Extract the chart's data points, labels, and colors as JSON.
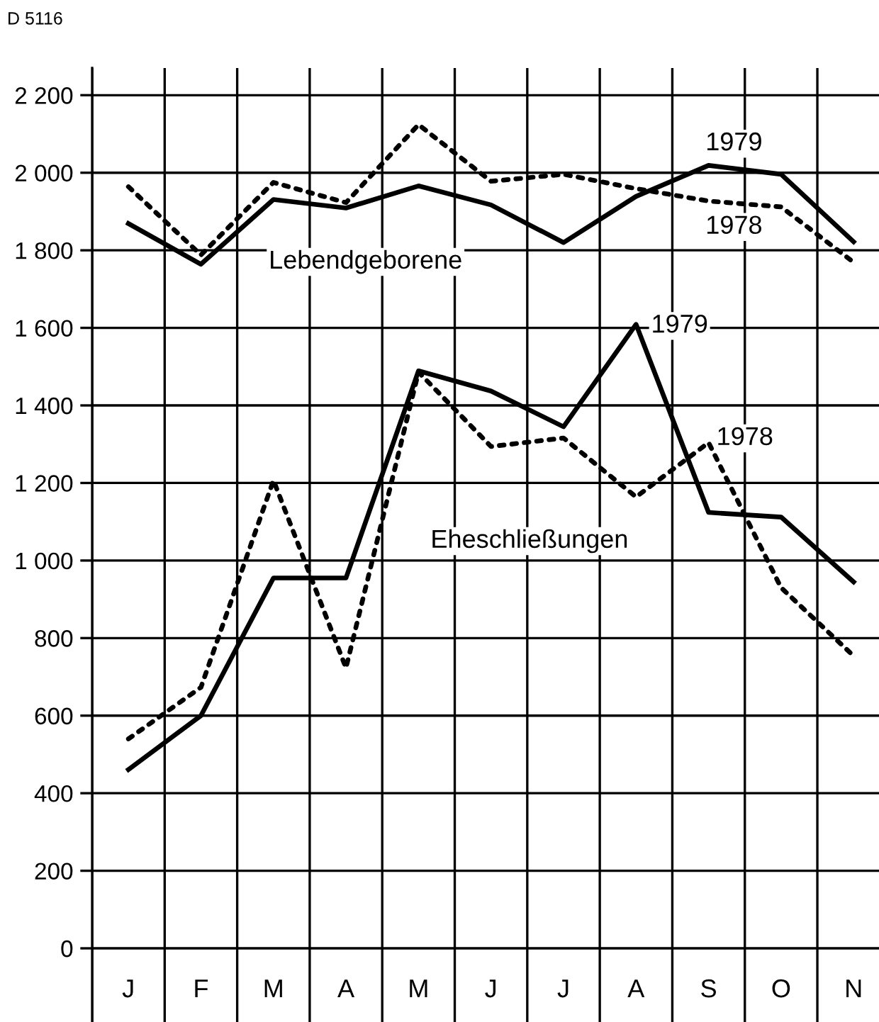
{
  "chart_data": {
    "type": "line",
    "categories": [
      "J",
      "F",
      "M",
      "A",
      "M",
      "J",
      "J",
      "A",
      "S",
      "O",
      "N"
    ],
    "series": [
      {
        "name": "1979",
        "color": "#000000",
        "line_style": "solid",
        "values": [
          1869,
          1764,
          1931,
          1909,
          1966,
          1917,
          1820,
          1939,
          2019,
          1996,
          1822
        ]
      },
      {
        "name": "1978",
        "color": "#000000",
        "line_style": "dotted",
        "values": [
          1964,
          1788,
          1975,
          1923,
          2124,
          1978,
          1996,
          1959,
          1927,
          1912,
          1769
        ]
      },
      {
        "name": "1979",
        "color": "#000000",
        "line_style": "solid",
        "values": [
          461,
          600,
          955,
          955,
          1489,
          1437,
          1345,
          1609,
          1124,
          1112,
          945
        ]
      },
      {
        "name": "1978",
        "color": "#000000",
        "line_style": "dotted",
        "values": [
          540,
          673,
          1207,
          723,
          1486,
          1294,
          1316,
          1164,
          1304,
          930,
          754
        ]
      }
    ],
    "annotations": [
      "D 5116",
      "Lebendgeborene",
      "Eheschließungen"
    ],
    "ylim": [
      -190,
      2270
    ],
    "yticks": [
      {
        "value": 0,
        "label": "0"
      },
      {
        "value": 200,
        "label": "200"
      },
      {
        "value": 400,
        "label": "400"
      },
      {
        "value": 600,
        "label": "600"
      },
      {
        "value": 800,
        "label": "800"
      },
      {
        "value": 1000,
        "label": "1 000"
      },
      {
        "value": 1200,
        "label": "1 200"
      },
      {
        "value": 1400,
        "label": "1 400"
      },
      {
        "value": 1600,
        "label": "1 600"
      },
      {
        "value": 1800,
        "label": "1 800"
      },
      {
        "value": 2000,
        "label": "2 000"
      },
      {
        "value": 2200,
        "label": "2 200"
      }
    ],
    "grid": true,
    "marker": "none",
    "legend": false
  }
}
